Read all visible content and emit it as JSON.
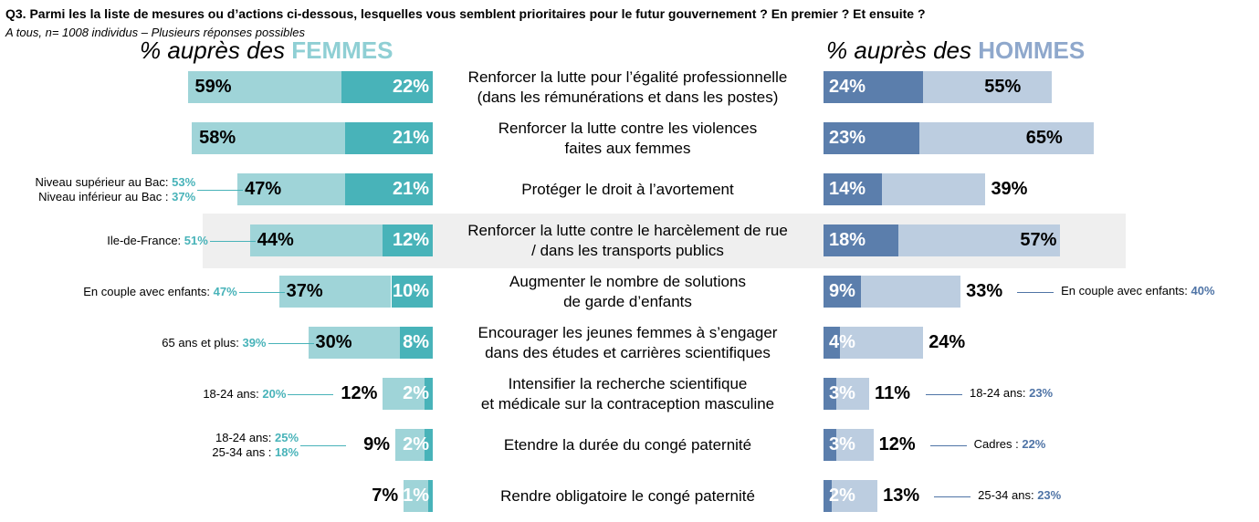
{
  "title": "Q3. Parmi les la liste de mesures ou d’actions ci-dessous, lesquelles vous semblent prioritaires pour le futur gouvernement ? En premier ? Et ensuite ?",
  "subtitle": "A tous, n= 1008 individus – Plusieurs réponses possibles",
  "panel_women": {
    "prefix": "% auprès des ",
    "group": "FEMMES"
  },
  "panel_men": {
    "prefix": "% auprès des ",
    "group": "HOMMES"
  },
  "colors": {
    "women_dark": "#48b3b9",
    "women_light": "#9fd4d8",
    "men_dark": "#5b7eac",
    "men_light": "#bccde0",
    "highlight": "#efefef"
  },
  "chart_data": {
    "type": "bar",
    "orientation": "horizontal",
    "layout": "butterfly (women left, men right)",
    "categories": [
      [
        "Renforcer la lutte pour l’égalité professionnelle",
        "(dans les rémunérations et dans les postes)"
      ],
      [
        "Renforcer la lutte contre les violences",
        "faites aux femmes"
      ],
      [
        "Protéger le droit à l’avortement"
      ],
      [
        "Renforcer la lutte contre le harcèlement de rue",
        "/ dans les transports publics"
      ],
      [
        "Augmenter le nombre de solutions",
        "de garde d’enfants"
      ],
      [
        "Encourager les jeunes femmes à s’engager",
        "dans des études et carrières scientifiques"
      ],
      [
        "Intensifier la recherche scientifique",
        "et médicale sur la contraception masculine"
      ],
      [
        "Etendre la durée du congé paternité"
      ],
      [
        "Rendre obligatoire le congé paternité"
      ]
    ],
    "highlighted_index": 3,
    "women": {
      "total": [
        59,
        58,
        47,
        44,
        37,
        30,
        12,
        9,
        7
      ],
      "first": [
        22,
        21,
        21,
        12,
        10,
        8,
        2,
        2,
        1
      ]
    },
    "men": {
      "total": [
        55,
        65,
        39,
        57,
        33,
        24,
        11,
        12,
        13
      ],
      "first": [
        24,
        23,
        14,
        18,
        9,
        4,
        3,
        3,
        2
      ]
    },
    "total_labels": [
      "59%",
      "58%",
      "47%",
      "44%",
      "37%",
      "30%",
      "12%",
      "9%",
      "7%"
    ],
    "first_labels": [
      "22%",
      "21%",
      "21%",
      "12%",
      "10%",
      "8%",
      "2%",
      "2%",
      "1%"
    ],
    "men_total_labels": [
      "55%",
      "65%",
      "39%",
      "57%",
      "33%",
      "24%",
      "11%",
      "12%",
      "13%"
    ],
    "men_first_labels": [
      "24%",
      "23%",
      "14%",
      "18%",
      "9%",
      "4%",
      "3%",
      "3%",
      "2%"
    ],
    "annotations_women": [
      {
        "row": 2,
        "lines": [
          {
            "label": "Niveau supérieur au Bac: ",
            "value": "53%"
          },
          {
            "label": "Niveau inférieur au Bac : ",
            "value": "37%"
          }
        ]
      },
      {
        "row": 3,
        "lines": [
          {
            "label": "Ile-de-France: ",
            "value": "51%"
          }
        ]
      },
      {
        "row": 4,
        "lines": [
          {
            "label": "En couple avec enfants: ",
            "value": "47%"
          }
        ]
      },
      {
        "row": 5,
        "lines": [
          {
            "label": "65 ans et plus: ",
            "value": "39%"
          }
        ]
      },
      {
        "row": 6,
        "lines": [
          {
            "label": "18-24 ans: ",
            "value": "20%"
          }
        ]
      },
      {
        "row": 7,
        "lines": [
          {
            "label": "18-24 ans: ",
            "value": "25%"
          },
          {
            "label": "25-34 ans : ",
            "value": "18%"
          }
        ]
      }
    ],
    "annotations_men": [
      {
        "row": 4,
        "lines": [
          {
            "label": "En couple avec enfants: ",
            "value": "40%"
          }
        ]
      },
      {
        "row": 6,
        "lines": [
          {
            "label": "18-24 ans: ",
            "value": "23%"
          }
        ]
      },
      {
        "row": 7,
        "lines": [
          {
            "label": "Cadres : ",
            "value": "22%"
          }
        ]
      },
      {
        "row": 8,
        "lines": [
          {
            "label": "25-34 ans: ",
            "value": "23%"
          }
        ]
      }
    ]
  }
}
